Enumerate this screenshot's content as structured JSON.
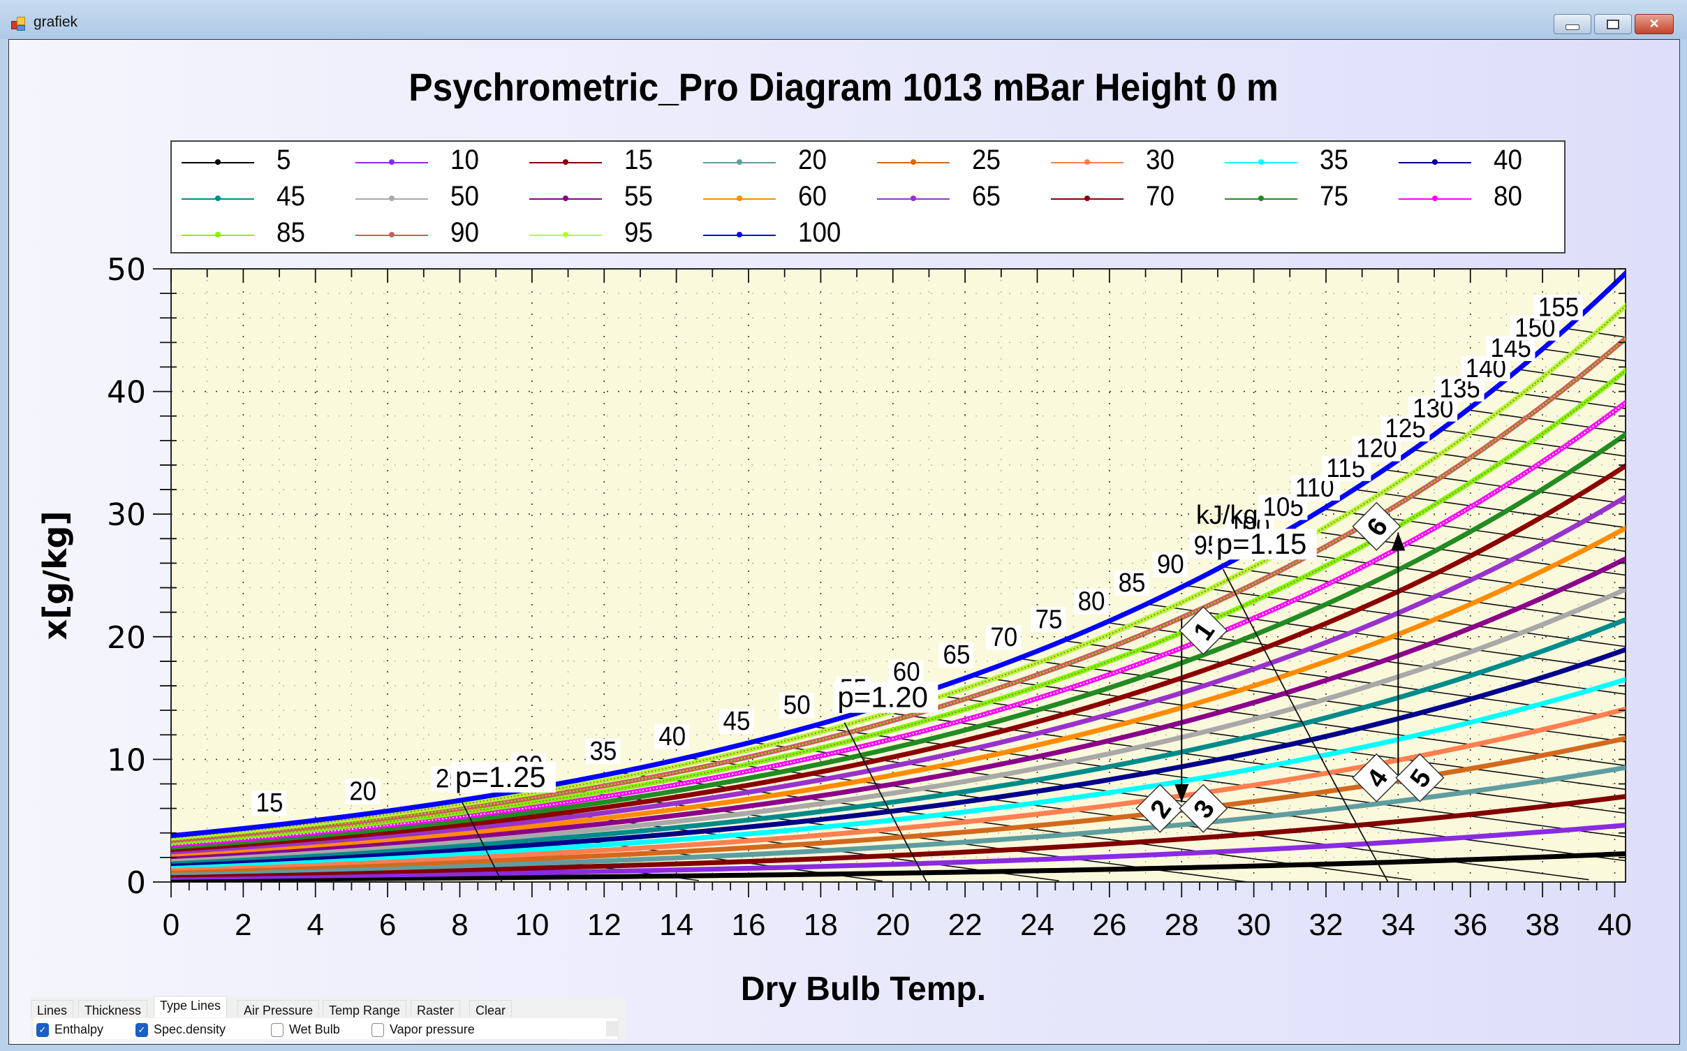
{
  "window": {
    "title": "grafiek",
    "buttons": {
      "minimize": "minimize",
      "maximize": "maximize",
      "close": "✕"
    }
  },
  "tabs": {
    "items": [
      {
        "label": "Lines",
        "active": false
      },
      {
        "label": "Thickness",
        "active": false
      },
      {
        "label": "Type Lines",
        "active": true
      },
      {
        "label": "Air Pressure",
        "active": false
      },
      {
        "label": "Temp Range",
        "active": false
      },
      {
        "label": "Raster",
        "active": false
      },
      {
        "label": "Clear",
        "active": false
      }
    ],
    "checkboxes": [
      {
        "label": "Enthalpy",
        "checked": true
      },
      {
        "label": "Spec.density",
        "checked": true
      },
      {
        "label": "Wet Bulb",
        "checked": false
      },
      {
        "label": "Vapor pressure",
        "checked": false
      }
    ]
  },
  "chart_data": {
    "type": "line",
    "title": "Psychrometric_Pro Diagram  1013 mBar   Height 0 m",
    "xlabel": "Dry Bulb Temp.",
    "ylabel": "x[g/kg]",
    "pressure_mbar": 1013,
    "height_m": 0,
    "xlim": [
      0,
      40.3
    ],
    "ylim": [
      0,
      50
    ],
    "xticks": [
      0,
      2,
      4,
      6,
      8,
      10,
      12,
      14,
      16,
      18,
      20,
      22,
      24,
      26,
      28,
      30,
      32,
      34,
      36,
      38,
      40
    ],
    "yticks": [
      0,
      10,
      20,
      30,
      40,
      50
    ],
    "grid": "dotted",
    "legend_position": "top",
    "series_quantity": "relative humidity (%)",
    "series": [
      {
        "name": "5",
        "rh": 5,
        "color": "#000000"
      },
      {
        "name": "10",
        "rh": 10,
        "color": "#8a2be2"
      },
      {
        "name": "15",
        "rh": 15,
        "color": "#800000"
      },
      {
        "name": "20",
        "rh": 20,
        "color": "#5f9ea0"
      },
      {
        "name": "25",
        "rh": 25,
        "color": "#d2691e"
      },
      {
        "name": "30",
        "rh": 30,
        "color": "#ff7f50"
      },
      {
        "name": "35",
        "rh": 35,
        "color": "#00ffff"
      },
      {
        "name": "40",
        "rh": 40,
        "color": "#00008b"
      },
      {
        "name": "45",
        "rh": 45,
        "color": "#008b8b"
      },
      {
        "name": "50",
        "rh": 50,
        "color": "#a9a9a9"
      },
      {
        "name": "55",
        "rh": 55,
        "color": "#8b008b"
      },
      {
        "name": "60",
        "rh": 60,
        "color": "#ff8c00"
      },
      {
        "name": "65",
        "rh": 65,
        "color": "#9932cc"
      },
      {
        "name": "70",
        "rh": 70,
        "color": "#8b0000"
      },
      {
        "name": "75",
        "rh": 75,
        "color": "#228b22"
      },
      {
        "name": "80",
        "rh": 80,
        "color": "#ff00ff"
      },
      {
        "name": "85",
        "rh": 85,
        "color": "#7cfc00"
      },
      {
        "name": "90",
        "rh": 90,
        "color": "#cd5c5c"
      },
      {
        "name": "95",
        "rh": 95,
        "color": "#adff2f"
      },
      {
        "name": "100",
        "rh": 100,
        "color": "#0000ff"
      }
    ],
    "enthalpy_lines": {
      "unit_label": "kJ/kg",
      "values": [
        15,
        20,
        25,
        30,
        35,
        40,
        45,
        50,
        55,
        60,
        65,
        70,
        75,
        80,
        85,
        90,
        95,
        100,
        105,
        110,
        115,
        120,
        125,
        130,
        135,
        140,
        145,
        150,
        155
      ]
    },
    "density_lines": {
      "values": [
        1.25,
        1.2,
        1.15
      ],
      "labels": [
        "p=1.25",
        "p=1.20",
        "p=1.15"
      ]
    },
    "process_points": [
      {
        "label": "1",
        "t": 28.6,
        "x": 20.5
      },
      {
        "label": "2",
        "t": 27.4,
        "x": 6.0
      },
      {
        "label": "3",
        "t": 28.6,
        "x": 6.0
      },
      {
        "label": "4",
        "t": 33.4,
        "x": 8.5
      },
      {
        "label": "5",
        "t": 34.6,
        "x": 8.5
      },
      {
        "label": "6",
        "t": 33.4,
        "x": 29.0
      }
    ],
    "process_arrows": [
      {
        "from": [
          28,
          21.5
        ],
        "to": [
          28,
          6.5
        ]
      },
      {
        "from": [
          34,
          8.5
        ],
        "to": [
          34,
          28.5
        ]
      }
    ]
  }
}
